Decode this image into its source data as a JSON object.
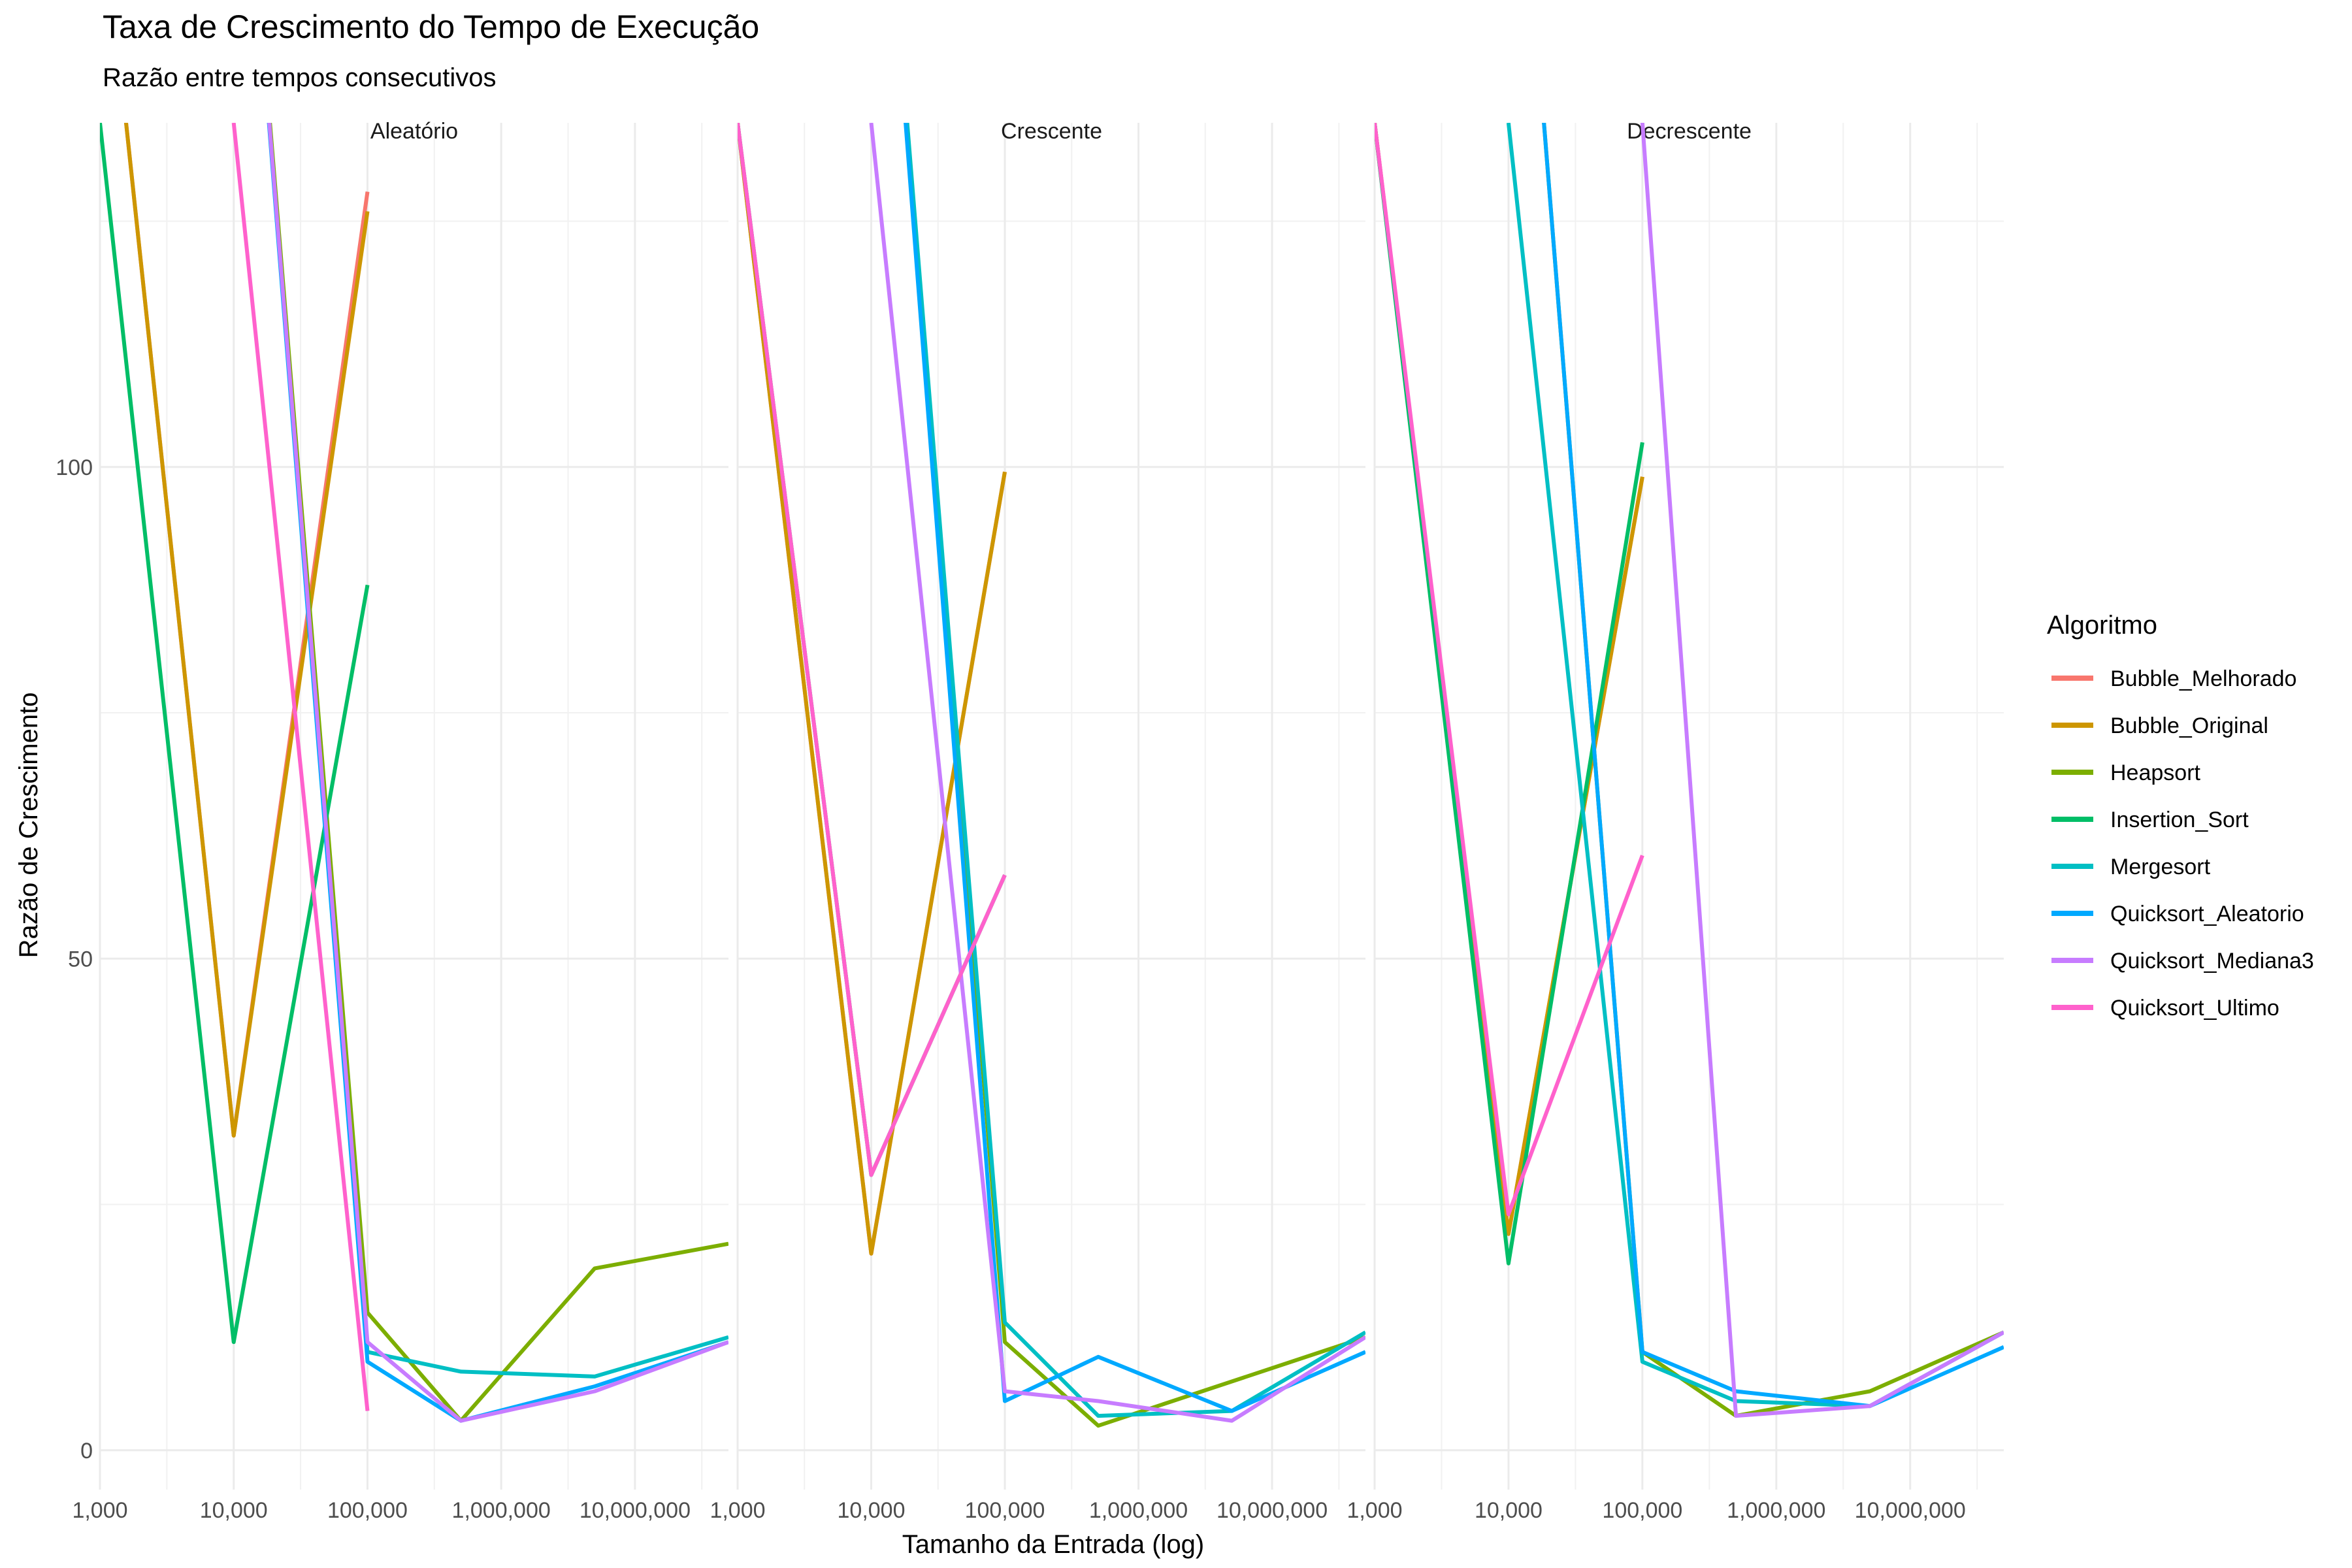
{
  "chart_data": {
    "type": "line",
    "title": "Taxa de Crescimento do Tempo de Execução",
    "subtitle": "Razão entre tempos consecutivos",
    "xlabel": "Tamanho da Entrada (log)",
    "ylabel": "Razão de Crescimento",
    "x_scale": "log10",
    "xlim": [
      1000,
      50000000
    ],
    "ylim": [
      -4,
      135
    ],
    "x_ticks": [
      1000,
      10000,
      100000,
      1000000,
      10000000
    ],
    "x_tick_labels": [
      "1,000",
      "10,000",
      "100,000",
      "1,000,000",
      "10,000,000"
    ],
    "y_ticks": [
      0,
      50,
      100
    ],
    "y_tick_labels": [
      "0",
      "50",
      "100"
    ],
    "grid": true,
    "legend": {
      "title": "Algoritmo",
      "position": "right",
      "entries": [
        "Bubble_Melhorado",
        "Bubble_Original",
        "Heapsort",
        "Insertion_Sort",
        "Mergesort",
        "Quicksort_Aleatorio",
        "Quicksort_Mediana3",
        "Quicksort_Ultimo"
      ]
    },
    "colors": {
      "Bubble_Melhorado": "#F8766D",
      "Bubble_Original": "#CD9600",
      "Heapsort": "#7CAE00",
      "Insertion_Sort": "#00BE67",
      "Mergesort": "#00BFC4",
      "Quicksort_Aleatorio": "#00A9FF",
      "Quicksort_Mediana3": "#C77CFF",
      "Quicksort_Ultimo": "#FF61CC"
    },
    "panels": [
      {
        "title": "Aleatório",
        "series": [
          {
            "name": "Bubble_Melhorado",
            "points": [
              [
                1000,
                160
              ],
              [
                10000,
                32
              ],
              [
                100000,
                128
              ]
            ]
          },
          {
            "name": "Bubble_Original",
            "points": [
              [
                1000,
                160
              ],
              [
                10000,
                32
              ],
              [
                100000,
                126
              ]
            ]
          },
          {
            "name": "Heapsort",
            "points": [
              [
                10000,
                180
              ],
              [
                100000,
                14
              ],
              [
                500000,
                3
              ],
              [
                5000000,
                18.5
              ],
              [
                50000000,
                21
              ]
            ]
          },
          {
            "name": "Insertion_Sort",
            "points": [
              [
                1000,
                135
              ],
              [
                10000,
                11
              ],
              [
                100000,
                88
              ]
            ]
          },
          {
            "name": "Mergesort",
            "points": [
              [
                10000,
                180
              ],
              [
                100000,
                10
              ],
              [
                500000,
                8
              ],
              [
                5000000,
                7.5
              ],
              [
                50000000,
                11.5
              ]
            ]
          },
          {
            "name": "Quicksort_Aleatorio",
            "points": [
              [
                10000,
                180
              ],
              [
                100000,
                9
              ],
              [
                500000,
                3
              ],
              [
                5000000,
                6.5
              ],
              [
                50000000,
                11
              ]
            ]
          },
          {
            "name": "Quicksort_Mediana3",
            "points": [
              [
                10000,
                180
              ],
              [
                100000,
                11
              ],
              [
                500000,
                3
              ],
              [
                5000000,
                6
              ],
              [
                50000000,
                11
              ]
            ]
          },
          {
            "name": "Quicksort_Ultimo",
            "points": [
              [
                10000,
                135
              ],
              [
                100000,
                4
              ]
            ]
          }
        ]
      },
      {
        "title": "Crescente",
        "series": [
          {
            "name": "Bubble_Melhorado",
            "points": [
              [
                1000,
                135
              ],
              [
                10000,
                20
              ],
              [
                100000,
                99.5
              ]
            ]
          },
          {
            "name": "Bubble_Original",
            "points": [
              [
                1000,
                135
              ],
              [
                10000,
                20
              ],
              [
                100000,
                99.5
              ]
            ]
          },
          {
            "name": "Heapsort",
            "points": [
              [
                10000,
                180
              ],
              [
                100000,
                11
              ],
              [
                500000,
                2.5
              ],
              [
                50000000,
                11.5
              ]
            ]
          },
          {
            "name": "Insertion_Sort",
            "points": [
              [
                1000,
                135
              ],
              [
                10000,
                28
              ],
              [
                100000,
                58.5
              ]
            ]
          },
          {
            "name": "Mergesort",
            "points": [
              [
                10000,
                180
              ],
              [
                100000,
                13
              ],
              [
                500000,
                3.5
              ],
              [
                5000000,
                4
              ],
              [
                50000000,
                12
              ]
            ]
          },
          {
            "name": "Quicksort_Aleatorio",
            "points": [
              [
                10000,
                180
              ],
              [
                100000,
                5
              ],
              [
                500000,
                9.5
              ],
              [
                5000000,
                4
              ],
              [
                50000000,
                10
              ]
            ]
          },
          {
            "name": "Quicksort_Mediana3",
            "points": [
              [
                10000,
                135
              ],
              [
                100000,
                6
              ],
              [
                500000,
                5
              ],
              [
                5000000,
                3
              ],
              [
                50000000,
                11.5
              ]
            ]
          },
          {
            "name": "Quicksort_Ultimo",
            "points": [
              [
                1000,
                135
              ],
              [
                10000,
                28
              ],
              [
                100000,
                58.5
              ]
            ]
          }
        ]
      },
      {
        "title": "Decrescente",
        "series": [
          {
            "name": "Bubble_Melhorado",
            "points": [
              [
                1000,
                135
              ],
              [
                10000,
                22
              ],
              [
                100000,
                99
              ]
            ]
          },
          {
            "name": "Bubble_Original",
            "points": [
              [
                1000,
                135
              ],
              [
                10000,
                22
              ],
              [
                100000,
                99
              ]
            ]
          },
          {
            "name": "Heapsort",
            "points": [
              [
                10000,
                180
              ],
              [
                100000,
                10
              ],
              [
                500000,
                3.5
              ],
              [
                5000000,
                6
              ],
              [
                50000000,
                12
              ]
            ]
          },
          {
            "name": "Insertion_Sort",
            "points": [
              [
                1000,
                135
              ],
              [
                10000,
                19
              ],
              [
                100000,
                102.5
              ]
            ]
          },
          {
            "name": "Mergesort",
            "points": [
              [
                10000,
                135
              ],
              [
                100000,
                9
              ],
              [
                500000,
                5
              ],
              [
                5000000,
                4.5
              ],
              [
                50000000,
                12
              ]
            ]
          },
          {
            "name": "Quicksort_Aleatorio",
            "points": [
              [
                10000,
                180
              ],
              [
                100000,
                10
              ],
              [
                500000,
                6
              ],
              [
                5000000,
                4.5
              ],
              [
                50000000,
                10.5
              ]
            ]
          },
          {
            "name": "Quicksort_Mediana3",
            "points": [
              [
                50000,
                180
              ],
              [
                100000,
                135
              ],
              [
                500000,
                3.5
              ],
              [
                5000000,
                4.5
              ],
              [
                50000000,
                12
              ]
            ]
          },
          {
            "name": "Quicksort_Ultimo",
            "points": [
              [
                1000,
                135
              ],
              [
                10000,
                24
              ],
              [
                100000,
                60.5
              ]
            ]
          }
        ]
      }
    ]
  }
}
